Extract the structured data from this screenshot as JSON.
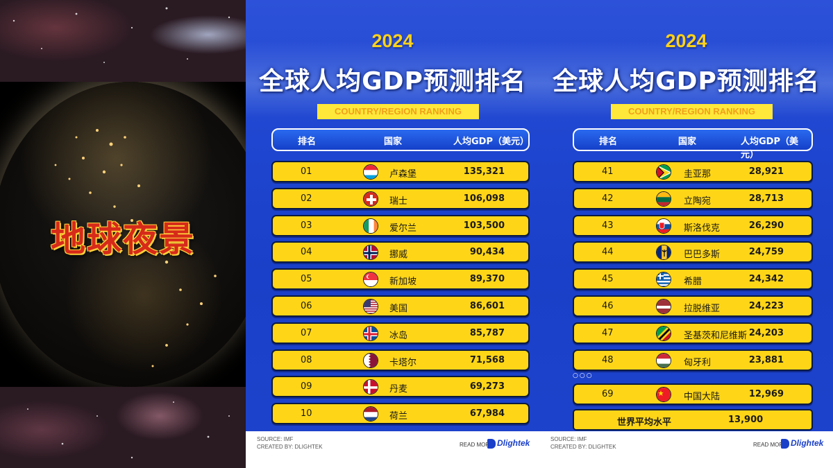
{
  "video": {
    "title": "地球夜景"
  },
  "panels": [
    {
      "year": "2024",
      "title": "全球人均GDP预测排名",
      "subtitle": "COUNTRY/REGION RANKING",
      "headers": {
        "rank": "排名",
        "country": "国家",
        "gdp": "人均GDP（美元）"
      },
      "rows": [
        {
          "rank": "01",
          "country": "卢森堡",
          "gdp": "135,321",
          "flag": "luxembourg-flag-icon"
        },
        {
          "rank": "02",
          "country": "瑞士",
          "gdp": "106,098",
          "flag": "switzerland-flag-icon"
        },
        {
          "rank": "03",
          "country": "爱尔兰",
          "gdp": "103,500",
          "flag": "ireland-flag-icon"
        },
        {
          "rank": "04",
          "country": "挪威",
          "gdp": "90,434",
          "flag": "norway-flag-icon"
        },
        {
          "rank": "05",
          "country": "新加坡",
          "gdp": "89,370",
          "flag": "singapore-flag-icon"
        },
        {
          "rank": "06",
          "country": "美国",
          "gdp": "86,601",
          "flag": "usa-flag-icon"
        },
        {
          "rank": "07",
          "country": "冰岛",
          "gdp": "85,787",
          "flag": "iceland-flag-icon"
        },
        {
          "rank": "08",
          "country": "卡塔尔",
          "gdp": "71,568",
          "flag": "qatar-flag-icon"
        },
        {
          "rank": "09",
          "country": "丹麦",
          "gdp": "69,273",
          "flag": "denmark-flag-icon"
        },
        {
          "rank": "10",
          "country": "荷兰",
          "gdp": "67,984",
          "flag": "netherlands-flag-icon"
        }
      ],
      "footer": {
        "source": "SOURCE: IMF",
        "created": "CREATED BY: DLIGHTEK",
        "read_more": "READ MORE",
        "brand": "Dlightek"
      }
    },
    {
      "year": "2024",
      "title": "全球人均GDP预测排名",
      "subtitle": "COUNTRY/REGION RANKING",
      "headers": {
        "rank": "排名",
        "country": "国家",
        "gdp": "人均GDP（美元）"
      },
      "rows": [
        {
          "rank": "41",
          "country": "圭亚那",
          "gdp": "28,921",
          "flag": "guyana-flag-icon"
        },
        {
          "rank": "42",
          "country": "立陶宛",
          "gdp": "28,713",
          "flag": "lithuania-flag-icon"
        },
        {
          "rank": "43",
          "country": "斯洛伐克",
          "gdp": "26,290",
          "flag": "slovakia-flag-icon"
        },
        {
          "rank": "44",
          "country": "巴巴多斯",
          "gdp": "24,759",
          "flag": "barbados-flag-icon"
        },
        {
          "rank": "45",
          "country": "希腊",
          "gdp": "24,342",
          "flag": "greece-flag-icon"
        },
        {
          "rank": "46",
          "country": "拉脱维亚",
          "gdp": "24,223",
          "flag": "latvia-flag-icon"
        },
        {
          "rank": "47",
          "country": "圣基茨和尼维斯",
          "gdp": "24,203",
          "flag": "saint-kitts-nevis-flag-icon"
        },
        {
          "rank": "48",
          "country": "匈牙利",
          "gdp": "23,881",
          "flag": "hungary-flag-icon"
        }
      ],
      "ellipsis": "○○○",
      "china_row": {
        "rank": "69",
        "country": "中国大陆",
        "gdp": "12,969",
        "flag": "china-flag-icon"
      },
      "world_avg": {
        "label": "世界平均水平",
        "value": "13,900"
      },
      "footer": {
        "source": "SOURCE: IMF",
        "created": "CREATED BY: DLIGHTEK",
        "read_more": "READ MORE",
        "brand": "Dlightek"
      }
    }
  ]
}
